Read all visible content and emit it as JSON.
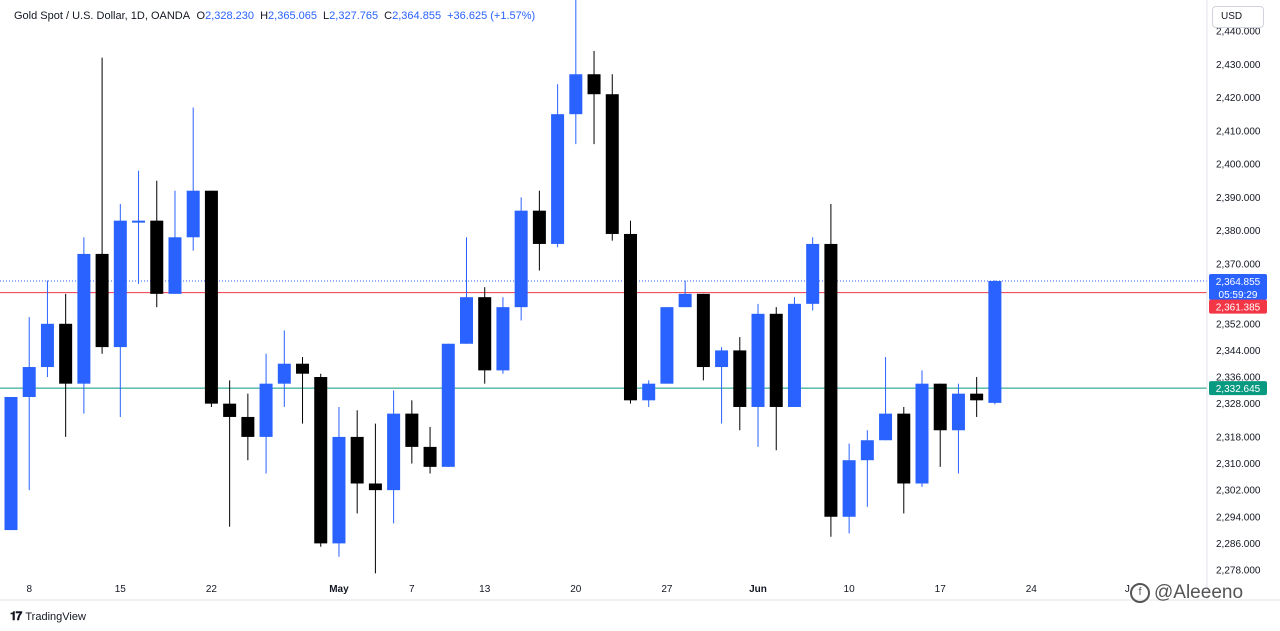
{
  "header": {
    "symbol": "Gold Spot / U.S. Dollar, 1D, OANDA",
    "o_label": "O",
    "o_value": "2,328.230",
    "h_label": "H",
    "h_value": "2,365.065",
    "l_label": "L",
    "l_value": "2,327.765",
    "c_label": "C",
    "c_value": "2,364.855",
    "change": "+36.625 (+1.57%)"
  },
  "currency": "USD",
  "price_tags": {
    "last_price": "2,364.855",
    "countdown": "05:59:29",
    "red_line": "2,361.385",
    "green_line": "2,332.645"
  },
  "footer": {
    "brand": "TradingView",
    "watermark": "@Aleeeno"
  },
  "colors": {
    "up": "#2962ff",
    "down": "#000000",
    "red_line": "#f23645",
    "green_line": "#089981",
    "last_price_dotted": "#2962ff"
  },
  "chart_data": {
    "type": "candlestick",
    "ylim": [
      2274,
      2446
    ],
    "y_ticks": [
      "2,440.000",
      "2,430.000",
      "2,420.000",
      "2,410.000",
      "2,400.000",
      "2,390.000",
      "2,380.000",
      "2,370.000",
      "2,360.000",
      "2,352.000",
      "2,344.000",
      "2,336.000",
      "2,328.000",
      "2,318.000",
      "2,310.000",
      "2,302.000",
      "2,294.000",
      "2,286.000",
      "2,278.000"
    ],
    "y_tick_values": [
      2440,
      2430,
      2420,
      2410,
      2400,
      2390,
      2380,
      2370,
      2360,
      2352,
      2344,
      2336,
      2328,
      2318,
      2310,
      2302,
      2294,
      2286,
      2278
    ],
    "x_labels": [
      {
        "label": "8",
        "index": 1
      },
      {
        "label": "15",
        "index": 6
      },
      {
        "label": "22",
        "index": 11
      },
      {
        "label": "May",
        "index": 18
      },
      {
        "label": "7",
        "index": 22
      },
      {
        "label": "13",
        "index": 26
      },
      {
        "label": "20",
        "index": 31
      },
      {
        "label": "27",
        "index": 36
      },
      {
        "label": "Jun",
        "index": 41
      },
      {
        "label": "10",
        "index": 46
      },
      {
        "label": "17",
        "index": 51
      },
      {
        "label": "24",
        "index": 56
      },
      {
        "label": "J",
        "index": 61
      }
    ],
    "horizontal_lines": [
      {
        "name": "red-level",
        "value": 2361.385
      },
      {
        "name": "green-level",
        "value": 2332.645
      },
      {
        "name": "last-price",
        "value": 2364.855
      }
    ],
    "candles": [
      {
        "o": 2290,
        "h": 2330,
        "l": 2290,
        "c": 2330
      },
      {
        "o": 2330,
        "h": 2354,
        "l": 2302,
        "c": 2339
      },
      {
        "o": 2339,
        "h": 2365,
        "l": 2336,
        "c": 2352
      },
      {
        "o": 2352,
        "h": 2361,
        "l": 2318,
        "c": 2334
      },
      {
        "o": 2334,
        "h": 2378,
        "l": 2325,
        "c": 2373
      },
      {
        "o": 2373,
        "h": 2432,
        "l": 2343,
        "c": 2345
      },
      {
        "o": 2345,
        "h": 2388,
        "l": 2324,
        "c": 2383
      },
      {
        "o": 2383,
        "h": 2398,
        "l": 2364,
        "c": 2383
      },
      {
        "o": 2383,
        "h": 2395,
        "l": 2357,
        "c": 2361
      },
      {
        "o": 2361,
        "h": 2392,
        "l": 2361,
        "c": 2378
      },
      {
        "o": 2378,
        "h": 2417,
        "l": 2374,
        "c": 2392
      },
      {
        "o": 2392,
        "h": 2392,
        "l": 2327,
        "c": 2328
      },
      {
        "o": 2328,
        "h": 2335,
        "l": 2291,
        "c": 2324
      },
      {
        "o": 2324,
        "h": 2331,
        "l": 2311,
        "c": 2318
      },
      {
        "o": 2318,
        "h": 2343,
        "l": 2307,
        "c": 2334
      },
      {
        "o": 2334,
        "h": 2350,
        "l": 2327,
        "c": 2340
      },
      {
        "o": 2340,
        "h": 2342,
        "l": 2322,
        "c": 2337
      },
      {
        "o": 2336,
        "h": 2337,
        "l": 2285,
        "c": 2286
      },
      {
        "o": 2286,
        "h": 2327,
        "l": 2282,
        "c": 2318
      },
      {
        "o": 2318,
        "h": 2326,
        "l": 2295,
        "c": 2304
      },
      {
        "o": 2304,
        "h": 2322,
        "l": 2277,
        "c": 2302
      },
      {
        "o": 2302,
        "h": 2332,
        "l": 2292,
        "c": 2325
      },
      {
        "o": 2325,
        "h": 2329,
        "l": 2310,
        "c": 2315
      },
      {
        "o": 2315,
        "h": 2321,
        "l": 2307,
        "c": 2309
      },
      {
        "o": 2309,
        "h": 2346,
        "l": 2309,
        "c": 2346
      },
      {
        "o": 2346,
        "h": 2378,
        "l": 2346,
        "c": 2360
      },
      {
        "o": 2360,
        "h": 2363,
        "l": 2334,
        "c": 2338
      },
      {
        "o": 2338,
        "h": 2360,
        "l": 2337,
        "c": 2357
      },
      {
        "o": 2357,
        "h": 2390,
        "l": 2353,
        "c": 2386
      },
      {
        "o": 2386,
        "h": 2392,
        "l": 2368,
        "c": 2376
      },
      {
        "o": 2376,
        "h": 2424,
        "l": 2375,
        "c": 2415
      },
      {
        "o": 2415,
        "h": 2451,
        "l": 2406,
        "c": 2427
      },
      {
        "o": 2427,
        "h": 2434,
        "l": 2406,
        "c": 2421
      },
      {
        "o": 2421,
        "h": 2427,
        "l": 2377,
        "c": 2379
      },
      {
        "o": 2379,
        "h": 2383,
        "l": 2328,
        "c": 2329
      },
      {
        "o": 2329,
        "h": 2335,
        "l": 2327,
        "c": 2334
      },
      {
        "o": 2334,
        "h": 2357,
        "l": 2334,
        "c": 2357
      },
      {
        "o": 2357,
        "h": 2365,
        "l": 2357,
        "c": 2361
      },
      {
        "o": 2361,
        "h": 2361,
        "l": 2335,
        "c": 2339
      },
      {
        "o": 2339,
        "h": 2345,
        "l": 2322,
        "c": 2344
      },
      {
        "o": 2344,
        "h": 2348,
        "l": 2320,
        "c": 2327
      },
      {
        "o": 2327,
        "h": 2358,
        "l": 2315,
        "c": 2355
      },
      {
        "o": 2355,
        "h": 2357,
        "l": 2314,
        "c": 2327
      },
      {
        "o": 2327,
        "h": 2360,
        "l": 2327,
        "c": 2358
      },
      {
        "o": 2358,
        "h": 2378,
        "l": 2356,
        "c": 2376
      },
      {
        "o": 2376,
        "h": 2388,
        "l": 2288,
        "c": 2294
      },
      {
        "o": 2294,
        "h": 2316,
        "l": 2289,
        "c": 2311
      },
      {
        "o": 2311,
        "h": 2320,
        "l": 2297,
        "c": 2317
      },
      {
        "o": 2317,
        "h": 2342,
        "l": 2317,
        "c": 2325
      },
      {
        "o": 2325,
        "h": 2327,
        "l": 2295,
        "c": 2304
      },
      {
        "o": 2304,
        "h": 2338,
        "l": 2303,
        "c": 2334
      },
      {
        "o": 2334,
        "h": 2334,
        "l": 2309,
        "c": 2320
      },
      {
        "o": 2320,
        "h": 2334,
        "l": 2307,
        "c": 2331
      },
      {
        "o": 2331,
        "h": 2336,
        "l": 2324,
        "c": 2329
      },
      {
        "o": 2328.23,
        "h": 2365.065,
        "l": 2327.765,
        "c": 2364.855
      }
    ]
  }
}
